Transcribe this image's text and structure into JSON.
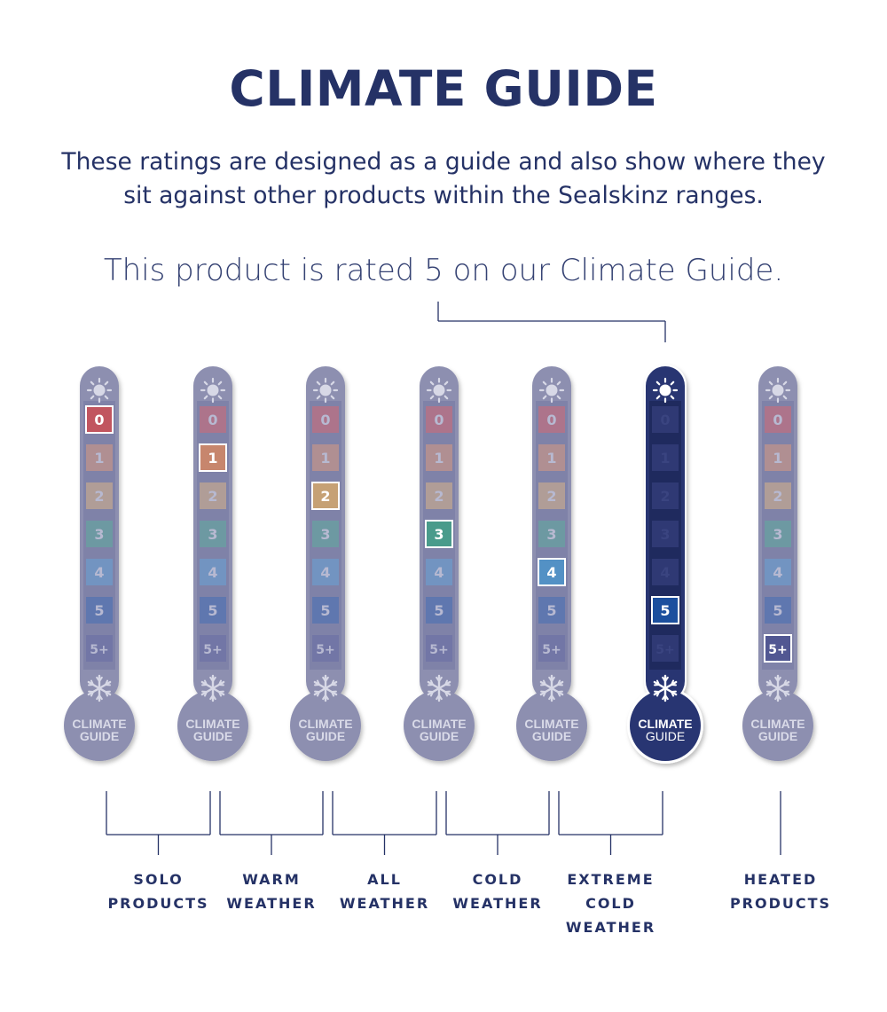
{
  "title": "CLIMATE GUIDE",
  "subtitle": "These ratings are designed as a guide and also show where they sit against other products within the Sealskinz ranges.",
  "rating_sentence": "This product is rated 5 on our Climate Guide.",
  "product_rating": 5,
  "scale": [
    "0",
    "1",
    "2",
    "3",
    "4",
    "5",
    "5+"
  ],
  "scale_colors": [
    "#c9494e",
    "#d0835f",
    "#cfa369",
    "#3b9b82",
    "#4790c7",
    "#1c4f9e",
    "#454c8a"
  ],
  "gauge_text": [
    "CLIMATE",
    "GUIDE"
  ],
  "thermometers": [
    {
      "rating": "0",
      "active": false
    },
    {
      "rating": "1",
      "active": false
    },
    {
      "rating": "2",
      "active": false
    },
    {
      "rating": "3",
      "active": false
    },
    {
      "rating": "4",
      "active": false
    },
    {
      "rating": "5",
      "active": true
    },
    {
      "rating": "5+",
      "active": false
    }
  ],
  "categories": [
    {
      "lines": [
        "SOLO",
        "PRODUCTS"
      ]
    },
    {
      "lines": [
        "WARM",
        "WEATHER"
      ]
    },
    {
      "lines": [
        "ALL",
        "WEATHER"
      ]
    },
    {
      "lines": [
        "COLD",
        "WEATHER"
      ]
    },
    {
      "lines": [
        "EXTREME",
        "COLD",
        "WEATHER"
      ]
    },
    {
      "lines": [
        "HEATED",
        "PRODUCTS"
      ]
    }
  ],
  "colors": {
    "navy": "#253266",
    "muted_body": "#8d8fb0",
    "active_body": "#283572"
  },
  "icons": {
    "top": "sun-icon",
    "bottom": "snowflake-icon"
  }
}
